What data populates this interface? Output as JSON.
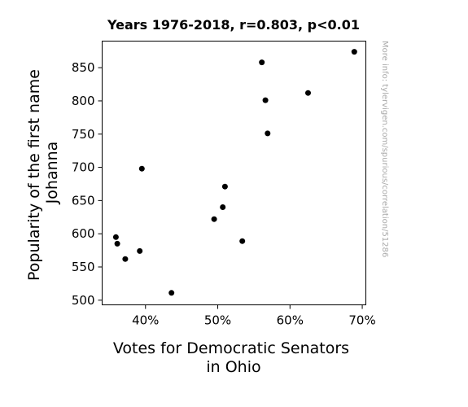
{
  "chart_data": {
    "type": "scatter",
    "title": "Years 1976-2018, r=0.803, p<0.01",
    "xlabel": [
      "Votes for Democratic Senators",
      "in Ohio"
    ],
    "ylabel": [
      "Popularity of the first name",
      "Johanna"
    ],
    "xlim": [
      0.34,
      0.705
    ],
    "ylim": [
      493,
      890
    ],
    "xticks": [
      {
        "value": 0.4,
        "label": "40%"
      },
      {
        "value": 0.5,
        "label": "50%"
      },
      {
        "value": 0.6,
        "label": "60%"
      },
      {
        "value": 0.7,
        "label": "70%"
      }
    ],
    "yticks": [
      {
        "value": 500,
        "label": "500"
      },
      {
        "value": 550,
        "label": "550"
      },
      {
        "value": 600,
        "label": "600"
      },
      {
        "value": 650,
        "label": "650"
      },
      {
        "value": 700,
        "label": "700"
      },
      {
        "value": 750,
        "label": "750"
      },
      {
        "value": 800,
        "label": "800"
      },
      {
        "value": 850,
        "label": "850"
      }
    ],
    "grid": false,
    "marker_color": "#000000",
    "points": [
      {
        "x": 0.359,
        "y": 595
      },
      {
        "x": 0.361,
        "y": 585
      },
      {
        "x": 0.372,
        "y": 562
      },
      {
        "x": 0.392,
        "y": 574
      },
      {
        "x": 0.395,
        "y": 698
      },
      {
        "x": 0.436,
        "y": 511
      },
      {
        "x": 0.495,
        "y": 622
      },
      {
        "x": 0.507,
        "y": 640
      },
      {
        "x": 0.51,
        "y": 671
      },
      {
        "x": 0.534,
        "y": 589
      },
      {
        "x": 0.561,
        "y": 858
      },
      {
        "x": 0.566,
        "y": 801
      },
      {
        "x": 0.569,
        "y": 751
      },
      {
        "x": 0.625,
        "y": 812
      },
      {
        "x": 0.689,
        "y": 874
      }
    ]
  },
  "watermark": "More info: tylervigen.com/spurious/correlation/51286"
}
